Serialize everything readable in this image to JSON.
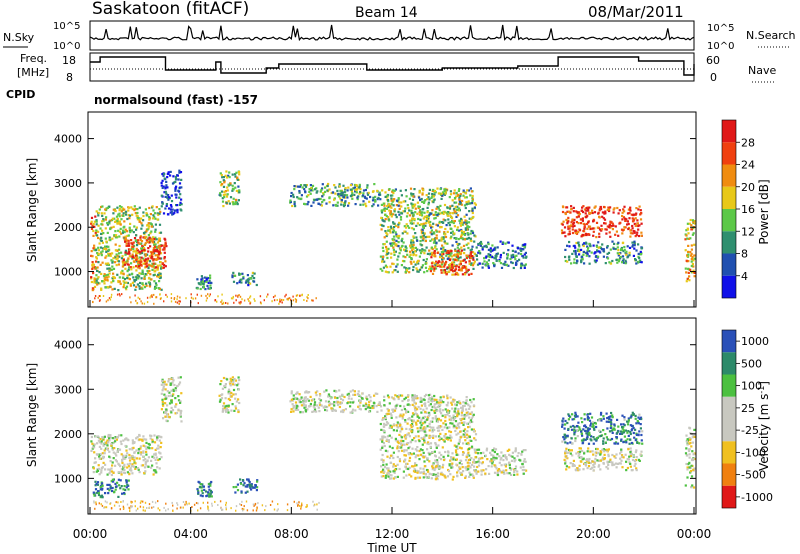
{
  "header": {
    "station": "Saskatoon (fitACF)",
    "beam": "Beam 14",
    "date": "08/Mar/2011"
  },
  "noise_panel": {
    "left_label": "N.Sky",
    "right_label": "N.Search",
    "left_ticks": [
      "10^5",
      "10^0"
    ],
    "right_ticks": [
      "10^5",
      "10^0"
    ]
  },
  "freq_panel": {
    "left_label_line1": "Freq.",
    "left_label_line2": "[MHz]",
    "right_label": "Nave",
    "left_ticks": [
      "18",
      "8"
    ],
    "right_ticks": [
      "60",
      "0"
    ]
  },
  "cpid": {
    "label": "CPID",
    "value": "normalsound (fast) -157"
  },
  "chart_data": [
    {
      "type": "heatmap",
      "title": "",
      "ylabel": "Slant Range [km]",
      "ylim": [
        200,
        4600
      ],
      "yticks": [
        "1000",
        "2000",
        "3000",
        "4000"
      ],
      "colorbar_label": "Power [dB]",
      "colorbar_ticks": [
        "4",
        "8",
        "12",
        "16",
        "20",
        "24",
        "28"
      ],
      "colorbar_colors": [
        "#1010e8",
        "#2050b0",
        "#2f8f6f",
        "#5cc848",
        "#e8c818",
        "#f08c10",
        "#f04010",
        "#e01818"
      ],
      "scatter_regions": [
        {
          "t": [
            0.0,
            0.2
          ],
          "r": [
            600,
            2300
          ],
          "level": 0.7
        },
        {
          "t": [
            0.2,
            2.8
          ],
          "r": [
            600,
            2500
          ],
          "level": 0.5
        },
        {
          "t": [
            1.3,
            3.0
          ],
          "r": [
            1100,
            1800
          ],
          "level": 0.85
        },
        {
          "t": [
            2.8,
            3.6
          ],
          "r": [
            2300,
            3300
          ],
          "level": 0.15
        },
        {
          "t": [
            4.2,
            4.8
          ],
          "r": [
            600,
            950
          ],
          "level": 0.25
        },
        {
          "t": [
            5.1,
            5.9
          ],
          "r": [
            2500,
            3300
          ],
          "level": 0.45
        },
        {
          "t": [
            5.6,
            6.6
          ],
          "r": [
            700,
            1000
          ],
          "level": 0.3
        },
        {
          "t": [
            7.9,
            11.5
          ],
          "r": [
            2500,
            3000
          ],
          "level": 0.35
        },
        {
          "t": [
            11.5,
            15.3
          ],
          "r": [
            1000,
            2900
          ],
          "level": 0.45
        },
        {
          "t": [
            13.5,
            15.2
          ],
          "r": [
            950,
            1500
          ],
          "level": 0.8
        },
        {
          "t": [
            15.3,
            17.3
          ],
          "r": [
            1100,
            1700
          ],
          "level": 0.25
        },
        {
          "t": [
            18.7,
            21.9
          ],
          "r": [
            1800,
            2500
          ],
          "level": 0.85
        },
        {
          "t": [
            18.8,
            21.9
          ],
          "r": [
            1200,
            1700
          ],
          "level": 0.3
        },
        {
          "t": [
            23.6,
            24.0
          ],
          "r": [
            800,
            2200
          ],
          "level": 0.6
        }
      ]
    },
    {
      "type": "heatmap",
      "title": "",
      "ylabel": "Velocity [m s^-1]",
      "yaxis_label": "Slant Range [km]",
      "ylim": [
        200,
        4600
      ],
      "yticks": [
        "1000",
        "2000",
        "3000",
        "4000"
      ],
      "xticks": [
        "00:00",
        "04:00",
        "08:00",
        "12:00",
        "16:00",
        "20:00",
        "00:00"
      ],
      "xlabel": "Time UT",
      "colorbar_label": "Velocity",
      "colorbar_unit": "[m s",
      "colorbar_unit_sup": "-1",
      "colorbar_unit_end": "]",
      "colorbar_ticks": [
        "1000",
        "500",
        "100",
        "25",
        "-25",
        "-100",
        "-500",
        "-1000"
      ],
      "colorbar_colors": [
        "#2a50b8",
        "#2d8a6a",
        "#4cc040",
        "#c8c8c0",
        "#c8c8c0",
        "#f0c020",
        "#f08010",
        "#e01818"
      ],
      "scatter_regions": [
        {
          "t": [
            0.0,
            2.8
          ],
          "r": [
            1100,
            2000
          ],
          "level": 0.5
        },
        {
          "t": [
            0.1,
            1.5
          ],
          "r": [
            600,
            1000
          ],
          "level": 0.15
        },
        {
          "t": [
            2.8,
            3.6
          ],
          "r": [
            2300,
            3300
          ],
          "level": 0.5
        },
        {
          "t": [
            4.2,
            4.8
          ],
          "r": [
            600,
            950
          ],
          "level": 0.15
        },
        {
          "t": [
            5.1,
            5.9
          ],
          "r": [
            2500,
            3300
          ],
          "level": 0.5
        },
        {
          "t": [
            5.6,
            6.6
          ],
          "r": [
            700,
            1000
          ],
          "level": 0.12
        },
        {
          "t": [
            7.9,
            11.5
          ],
          "r": [
            2500,
            3000
          ],
          "level": 0.5
        },
        {
          "t": [
            11.5,
            15.3
          ],
          "r": [
            1000,
            2900
          ],
          "level": 0.5
        },
        {
          "t": [
            15.3,
            17.3
          ],
          "r": [
            1100,
            1700
          ],
          "level": 0.5
        },
        {
          "t": [
            18.7,
            21.9
          ],
          "r": [
            1800,
            2500
          ],
          "level": 0.18
        },
        {
          "t": [
            18.8,
            21.9
          ],
          "r": [
            1200,
            1700
          ],
          "level": 0.5
        },
        {
          "t": [
            23.6,
            24.0
          ],
          "r": [
            800,
            2200
          ],
          "level": 0.5
        }
      ]
    }
  ]
}
